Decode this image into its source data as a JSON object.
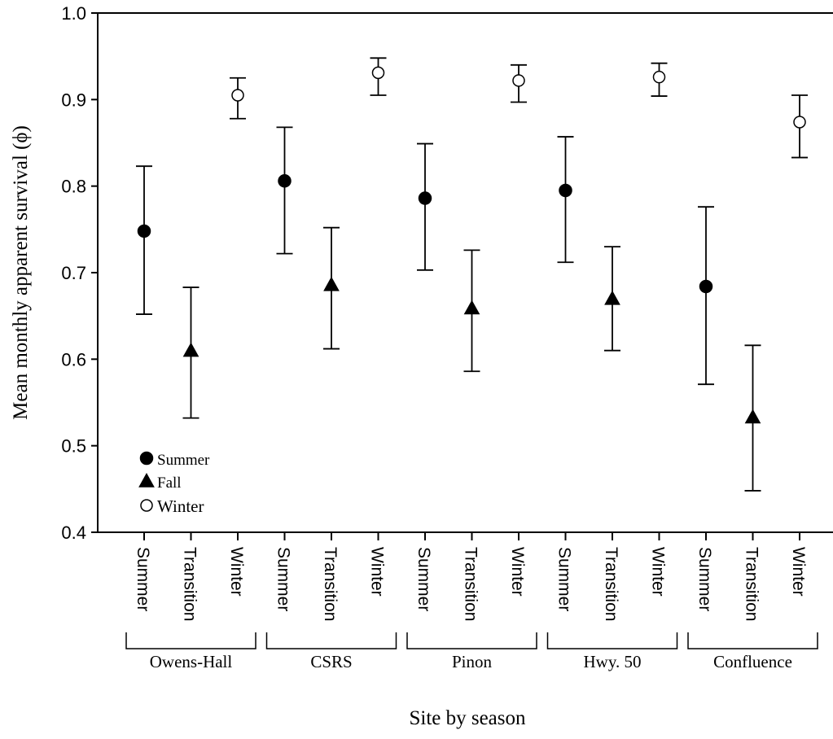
{
  "chart_data": {
    "type": "scatter",
    "xlabel": "Site by season",
    "ylabel": "Mean monthly apparent survival (ϕ)",
    "ylim": [
      0.4,
      1.0
    ],
    "yticks": [
      "0.4",
      "0.5",
      "0.6",
      "0.7",
      "0.8",
      "0.9",
      "1.0"
    ],
    "categories": [
      "Summer",
      "Transition",
      "Winter",
      "Summer",
      "Transition",
      "Winter",
      "Summer",
      "Transition",
      "Winter",
      "Summer",
      "Transition",
      "Winter",
      "Summer",
      "Transition",
      "Winter"
    ],
    "groups": [
      "Owens-Hall",
      "CSRS",
      "Pinon",
      "Hwy. 50",
      "Confluence"
    ],
    "legend_position": "bottom-left",
    "grid": false,
    "series": [
      {
        "name": "Summer",
        "marker": "filled-circle",
        "points": [
          {
            "category_index": 0,
            "value": 0.748,
            "lower": 0.652,
            "upper": 0.823
          },
          {
            "category_index": 3,
            "value": 0.806,
            "lower": 0.722,
            "upper": 0.868
          },
          {
            "category_index": 6,
            "value": 0.786,
            "lower": 0.703,
            "upper": 0.849
          },
          {
            "category_index": 9,
            "value": 0.795,
            "lower": 0.712,
            "upper": 0.857
          },
          {
            "category_index": 12,
            "value": 0.684,
            "lower": 0.571,
            "upper": 0.776
          }
        ]
      },
      {
        "name": "Fall",
        "marker": "filled-triangle",
        "points": [
          {
            "category_index": 1,
            "value": 0.61,
            "lower": 0.532,
            "upper": 0.683
          },
          {
            "category_index": 4,
            "value": 0.686,
            "lower": 0.612,
            "upper": 0.752
          },
          {
            "category_index": 7,
            "value": 0.659,
            "lower": 0.586,
            "upper": 0.726
          },
          {
            "category_index": 10,
            "value": 0.67,
            "lower": 0.61,
            "upper": 0.73
          },
          {
            "category_index": 13,
            "value": 0.533,
            "lower": 0.448,
            "upper": 0.616
          }
        ]
      },
      {
        "name": "Winter",
        "marker": "open-circle",
        "points": [
          {
            "category_index": 2,
            "value": 0.905,
            "lower": 0.878,
            "upper": 0.925
          },
          {
            "category_index": 5,
            "value": 0.931,
            "lower": 0.905,
            "upper": 0.948
          },
          {
            "category_index": 8,
            "value": 0.922,
            "lower": 0.897,
            "upper": 0.94
          },
          {
            "category_index": 11,
            "value": 0.926,
            "lower": 0.904,
            "upper": 0.942
          },
          {
            "category_index": 14,
            "value": 0.874,
            "lower": 0.833,
            "upper": 0.905
          }
        ]
      }
    ]
  }
}
